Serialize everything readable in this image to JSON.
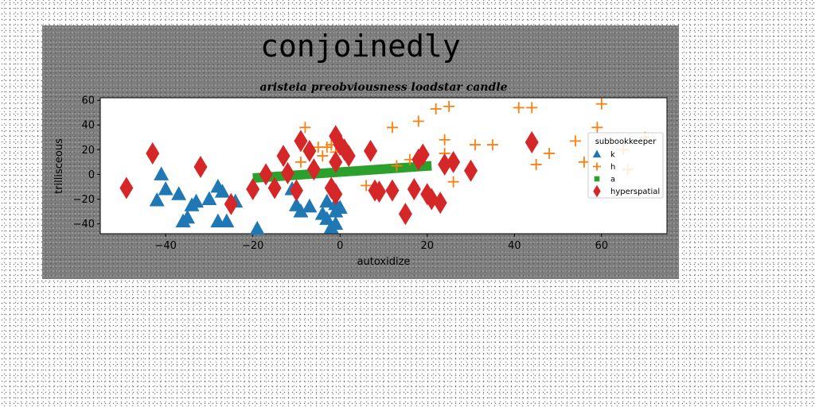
{
  "chart_data": {
    "type": "scatter",
    "suptitle": "conjoinedly",
    "title": "aristeia preobviousness loadstar candle",
    "xlabel": "autoxidize",
    "ylabel": "trillisceous",
    "xlim": [
      -55,
      75
    ],
    "ylim": [
      -48,
      62
    ],
    "xticks": [
      -40,
      -20,
      0,
      20,
      40,
      60
    ],
    "yticks": [
      -40,
      -20,
      0,
      20,
      40,
      60
    ],
    "grid": false,
    "legend": {
      "title": "subbookkeeper",
      "placement": "right"
    },
    "series": [
      {
        "name": "k",
        "marker": "triangle",
        "color": "#1f77b4",
        "points": [
          [
            -42,
            -21
          ],
          [
            -41,
            0
          ],
          [
            -40,
            -12
          ],
          [
            -37,
            -16
          ],
          [
            -35,
            -35
          ],
          [
            -34,
            -25
          ],
          [
            -33,
            -22
          ],
          [
            -36,
            -38
          ],
          [
            -30,
            -20
          ],
          [
            -28,
            -10
          ],
          [
            -28,
            -38
          ],
          [
            -27,
            -14
          ],
          [
            -26,
            -38
          ],
          [
            -24,
            -22
          ],
          [
            -19,
            -44
          ],
          [
            -11,
            -12
          ],
          [
            -10,
            -25
          ],
          [
            -9,
            -30
          ],
          [
            -7,
            -26
          ],
          [
            -4,
            -32
          ],
          [
            -3,
            -36
          ],
          [
            -2,
            -43
          ],
          [
            -1,
            -24
          ],
          [
            -1,
            -30
          ],
          [
            0,
            -27
          ],
          [
            -3,
            -22
          ],
          [
            -1,
            -40
          ]
        ]
      },
      {
        "name": "h",
        "marker": "plus",
        "color": "#ff7f0e",
        "points": [
          [
            -9,
            10
          ],
          [
            -8,
            38
          ],
          [
            -5,
            22
          ],
          [
            -4,
            15
          ],
          [
            -3,
            22
          ],
          [
            -2,
            24
          ],
          [
            -1,
            18
          ],
          [
            6,
            -9
          ],
          [
            12,
            38
          ],
          [
            13,
            7
          ],
          [
            18,
            43
          ],
          [
            22,
            53
          ],
          [
            24,
            28
          ],
          [
            24,
            17
          ],
          [
            25,
            55
          ],
          [
            26,
            -6
          ],
          [
            31,
            24
          ],
          [
            35,
            24
          ],
          [
            41,
            54
          ],
          [
            44,
            54
          ],
          [
            45,
            8
          ],
          [
            48,
            17
          ],
          [
            54,
            27
          ],
          [
            56,
            10
          ],
          [
            59,
            38
          ],
          [
            60,
            57
          ],
          [
            65,
            20
          ],
          [
            66,
            4
          ],
          [
            70,
            30
          ],
          [
            16,
            12
          ]
        ]
      },
      {
        "name": "a",
        "marker": "square",
        "color": "#2ca02c",
        "regression_line": {
          "x": [
            -20,
            21
          ],
          "y": [
            -3,
            7
          ]
        }
      },
      {
        "name": "hyperspatial",
        "marker": "diamond",
        "color": "#d62728",
        "points": [
          [
            -49,
            -11
          ],
          [
            -43,
            17
          ],
          [
            -32,
            6
          ],
          [
            -25,
            -24
          ],
          [
            -20,
            -12
          ],
          [
            -17,
            0
          ],
          [
            -15,
            -11
          ],
          [
            -13,
            15
          ],
          [
            -12,
            1
          ],
          [
            -10,
            -13
          ],
          [
            -9,
            27
          ],
          [
            -7,
            19
          ],
          [
            -6,
            4
          ],
          [
            -2,
            -11
          ],
          [
            -1,
            -16
          ],
          [
            -1,
            10
          ],
          [
            -1,
            31
          ],
          [
            0,
            24
          ],
          [
            1,
            20
          ],
          [
            2,
            15
          ],
          [
            7,
            19
          ],
          [
            8,
            -13
          ],
          [
            9,
            -14
          ],
          [
            12,
            -13
          ],
          [
            17,
            -12
          ],
          [
            18,
            12
          ],
          [
            19,
            16
          ],
          [
            20,
            -16
          ],
          [
            21,
            -20
          ],
          [
            23,
            -23
          ],
          [
            24,
            8
          ],
          [
            26,
            10
          ],
          [
            30,
            3
          ],
          [
            15,
            -32
          ],
          [
            44,
            26
          ]
        ]
      }
    ]
  }
}
